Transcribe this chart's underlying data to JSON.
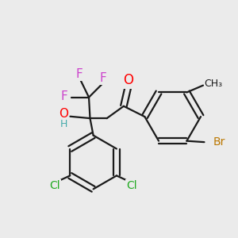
{
  "bg_color": "#ebebeb",
  "bond_color": "#1a1a1a",
  "bond_width": 1.6,
  "atom_colors": {
    "F": "#cc44cc",
    "O": "#ff0000",
    "H": "#44aaaa",
    "Cl": "#22aa22",
    "Br": "#bb7700",
    "C": "#1a1a1a"
  },
  "font_size": 11
}
